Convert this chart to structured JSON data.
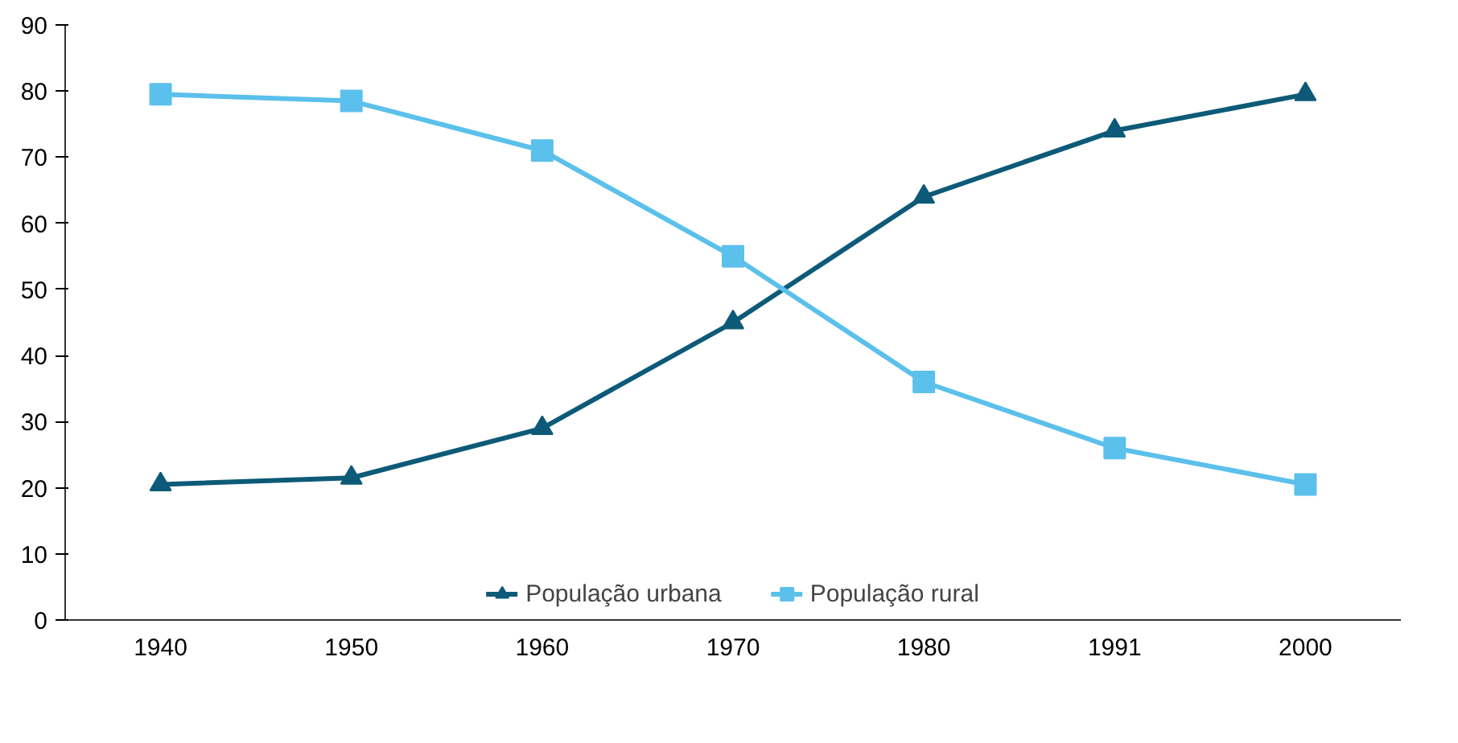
{
  "chart_data": {
    "type": "line",
    "categories": [
      "1940",
      "1950",
      "1960",
      "1970",
      "1980",
      "1991",
      "2000"
    ],
    "series": [
      {
        "name": "População urbana",
        "color": "#0d5a78",
        "marker": "triangle",
        "values": [
          20.5,
          21.5,
          29,
          45,
          64,
          74,
          79.5
        ]
      },
      {
        "name": "População rural",
        "color": "#5bc0eb",
        "marker": "square",
        "values": [
          79.5,
          78.5,
          71,
          55,
          36,
          26,
          20.5
        ]
      }
    ],
    "ylim": [
      0,
      90
    ],
    "yticks": [
      0,
      10,
      20,
      30,
      40,
      50,
      60,
      70,
      80,
      90
    ],
    "grid": false,
    "legend": "bottom",
    "line_style": "solid"
  }
}
